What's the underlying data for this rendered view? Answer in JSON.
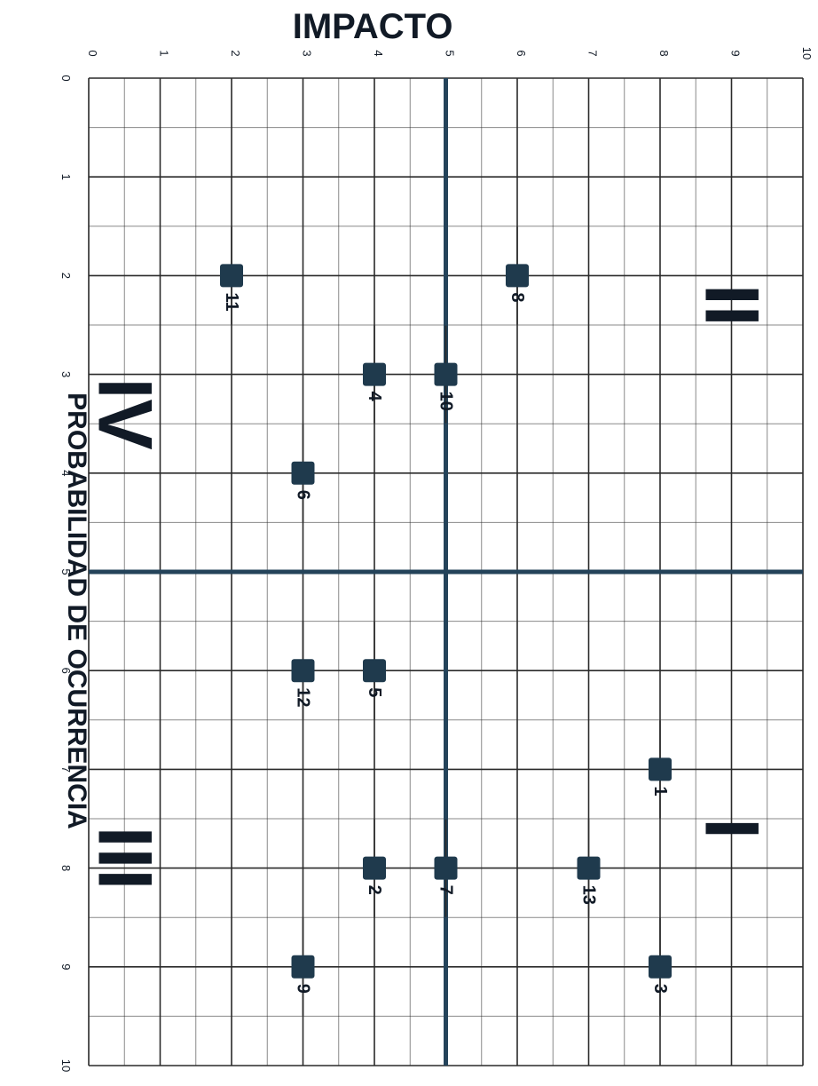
{
  "chart_data": {
    "type": "scatter",
    "title": "",
    "xlabel": "IMPACTO",
    "ylabel": "PROBABILIDAD DE OCURRENCIA",
    "xlim": [
      0,
      10
    ],
    "ylim": [
      0,
      10
    ],
    "x_ticks": [
      "0",
      "1",
      "2",
      "3",
      "4",
      "5",
      "6",
      "7",
      "8",
      "9",
      "10"
    ],
    "y_ticks": [
      "0",
      "1",
      "2",
      "3",
      "4",
      "5",
      "6",
      "7",
      "8",
      "9",
      "10"
    ],
    "divider": {
      "impacto": 5,
      "probabilidad": 5
    },
    "grid": true,
    "quadrants": [
      {
        "label": "II",
        "impacto": 9.0,
        "probabilidad": 2.3
      },
      {
        "label": "IV",
        "impacto": 0.5,
        "probabilidad": 3.4
      },
      {
        "label": "I",
        "impacto": 9.0,
        "probabilidad": 7.6
      },
      {
        "label": "III",
        "impacto": 0.5,
        "probabilidad": 7.9
      }
    ],
    "points": [
      {
        "id": "1",
        "impacto": 8,
        "probabilidad": 7
      },
      {
        "id": "2",
        "impacto": 4,
        "probabilidad": 8
      },
      {
        "id": "3",
        "impacto": 8,
        "probabilidad": 9
      },
      {
        "id": "4",
        "impacto": 4,
        "probabilidad": 3
      },
      {
        "id": "5",
        "impacto": 4,
        "probabilidad": 6
      },
      {
        "id": "6",
        "impacto": 3,
        "probabilidad": 4
      },
      {
        "id": "7",
        "impacto": 5,
        "probabilidad": 8
      },
      {
        "id": "8",
        "impacto": 6,
        "probabilidad": 2
      },
      {
        "id": "9",
        "impacto": 3,
        "probabilidad": 9
      },
      {
        "id": "10",
        "impacto": 5,
        "probabilidad": 3
      },
      {
        "id": "11",
        "impacto": 2,
        "probabilidad": 2
      },
      {
        "id": "12",
        "impacto": 3,
        "probabilidad": 6
      },
      {
        "id": "13",
        "impacto": 7,
        "probabilidad": 8
      }
    ],
    "colors": {
      "marker": "#1f3a4d",
      "divider": "#24435a",
      "grid": "#2a2a2a",
      "text": "#111a26"
    }
  }
}
